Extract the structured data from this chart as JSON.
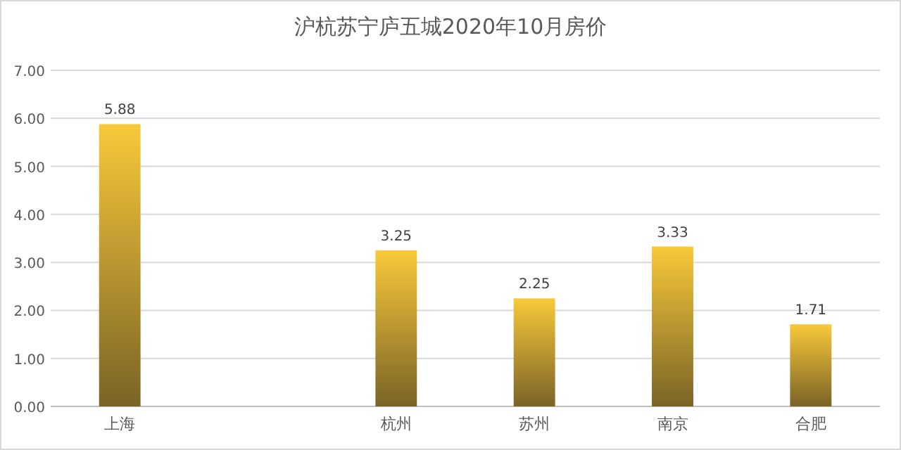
{
  "chart_data": {
    "type": "bar",
    "title": "沪杭苏宁庐五城2020年10月房价",
    "categories": [
      "上海",
      null,
      "杭州",
      "苏州",
      "南京",
      "合肥"
    ],
    "values": [
      5.88,
      null,
      3.25,
      2.25,
      3.33,
      1.71
    ],
    "color": "#f8c93a",
    "ylim": [
      0,
      7
    ],
    "yticks": [
      {
        "value": 0,
        "label": "0.00"
      },
      {
        "value": 1,
        "label": "1.00"
      },
      {
        "value": 2,
        "label": "2.00"
      },
      {
        "value": 3,
        "label": "3.00"
      },
      {
        "value": 4,
        "label": "4.00"
      },
      {
        "value": 5,
        "label": "5.00"
      },
      {
        "value": 6,
        "label": "6.00"
      },
      {
        "value": 7,
        "label": "7.00"
      }
    ],
    "grid": "y",
    "data_labels": true
  }
}
